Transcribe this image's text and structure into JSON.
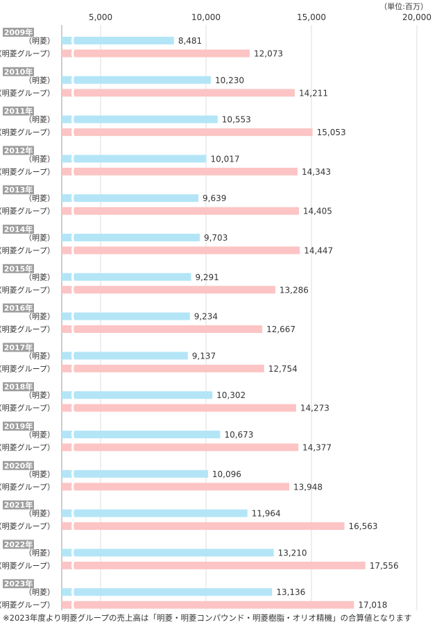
{
  "chart_data": {
    "type": "bar",
    "orientation": "horizontal",
    "unit_label": "（単位:百万）",
    "x_ticks": [
      "5,000",
      "10,000",
      "15,000",
      "20,000"
    ],
    "x_tick_values": [
      5000,
      10000,
      15000,
      20000
    ],
    "xlim": [
      0,
      20000
    ],
    "axis_break": true,
    "categories": [
      "2009年",
      "2010年",
      "2011年",
      "2012年",
      "2013年",
      "2014年",
      "2015年",
      "2016年",
      "2017年",
      "2018年",
      "2019年",
      "2020年",
      "2021年",
      "2022年",
      "2023年"
    ],
    "series": [
      {
        "name": "（明菱）",
        "color": "#b3e5f7",
        "values": [
          8481,
          10230,
          10553,
          10017,
          9639,
          9703,
          9291,
          9234,
          9137,
          10302,
          10673,
          10096,
          11964,
          13210,
          13136
        ],
        "labels": [
          "8,481",
          "10,230",
          "10,553",
          "10,017",
          "9,639",
          "9,703",
          "9,291",
          "9,234",
          "9,137",
          "10,302",
          "10,673",
          "10,096",
          "11,964",
          "13,210",
          "13,136"
        ]
      },
      {
        "name": "（明菱グループ）",
        "color": "#fcc4c4",
        "values": [
          12073,
          14211,
          15053,
          14343,
          14405,
          14447,
          13286,
          12667,
          12754,
          14273,
          14377,
          13948,
          16563,
          17556,
          17018
        ],
        "labels": [
          "12,073",
          "14,211",
          "15,053",
          "14,343",
          "14,405",
          "14,447",
          "13,286",
          "12,667",
          "12,754",
          "14,273",
          "14,377",
          "13,948",
          "16,563",
          "17,556",
          "17,018"
        ]
      }
    ],
    "grid": true,
    "year_badge_color": "#9e9e9e"
  },
  "footnote": "※2023年度より明菱グループの売上高は「明菱・明菱コンパウンド・明菱樹脂・オリオ精機」の合算値となります"
}
